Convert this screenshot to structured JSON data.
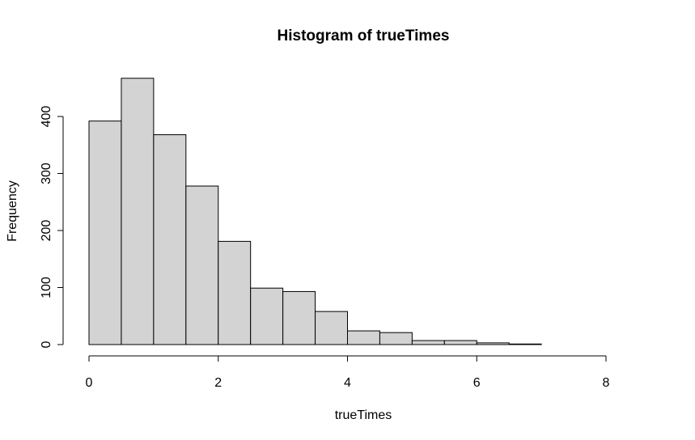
{
  "chart_data": {
    "type": "bar",
    "title": "Histogram of trueTimes",
    "xlabel": "trueTimes",
    "ylabel": "Frequency",
    "bin_edges": [
      0,
      0.5,
      1,
      1.5,
      2,
      2.5,
      3,
      3.5,
      4,
      4.5,
      5,
      5.5,
      6,
      6.5,
      7,
      7.5,
      8,
      8.5
    ],
    "values": [
      392,
      467,
      368,
      278,
      181,
      99,
      93,
      58,
      24,
      21,
      7,
      7,
      3,
      1,
      0,
      0,
      0
    ],
    "xlim": [
      0,
      8.5
    ],
    "ylim": [
      0,
      467
    ],
    "x_ticks": [
      "0",
      "2",
      "4",
      "6",
      "8"
    ],
    "y_ticks": [
      "0",
      "100",
      "200",
      "300",
      "400"
    ],
    "colors": {
      "bar_fill": "#d3d3d3",
      "bar_stroke": "#000000"
    },
    "grid": false,
    "legend": "none"
  }
}
